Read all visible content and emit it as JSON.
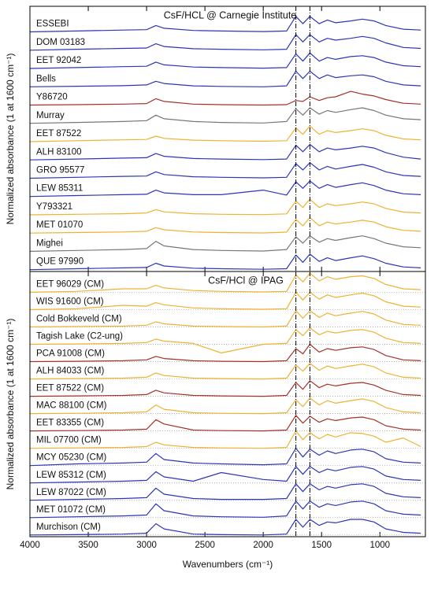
{
  "chart_data": [
    {
      "type": "line",
      "title": "CsF/HCL @ Carnegie Institute",
      "ylabel": "Normalized absorbance (1 at 1600 cm⁻¹)",
      "x": [
        4000,
        3600,
        3200,
        3000,
        2920,
        2850,
        2600,
        2360,
        2000,
        1800,
        1720,
        1660,
        1600,
        1520,
        1450,
        1380,
        1250,
        1150,
        1050,
        950,
        800,
        650
      ],
      "xlim": [
        4000,
        610
      ],
      "xticks": [
        4000,
        3500,
        3000,
        2500,
        2000,
        1500,
        1000
      ],
      "ylim": [
        0,
        14.5
      ],
      "vlines": [
        1720,
        1600
      ],
      "series": [
        {
          "name": "ESSEBI",
          "color": "#2b36b8",
          "values": [
            13.1,
            13.15,
            13.2,
            13.22,
            13.45,
            13.3,
            13.18,
            13.15,
            13.12,
            13.15,
            13.95,
            13.55,
            13.95,
            13.55,
            13.75,
            13.6,
            13.7,
            13.8,
            13.7,
            13.45,
            13.25,
            13.2
          ]
        },
        {
          "name": "DOM 03183",
          "color": "#2b36b8",
          "values": [
            12.1,
            12.15,
            12.2,
            12.22,
            12.45,
            12.3,
            12.18,
            12.15,
            12.12,
            12.15,
            12.95,
            12.55,
            12.95,
            12.55,
            12.75,
            12.65,
            12.75,
            12.85,
            12.75,
            12.5,
            12.25,
            12.2
          ]
        },
        {
          "name": "EET 92042",
          "color": "#2b36b8",
          "values": [
            11.1,
            11.15,
            11.2,
            11.22,
            11.45,
            11.3,
            11.18,
            11.15,
            11.12,
            11.15,
            11.9,
            11.5,
            11.95,
            11.5,
            11.7,
            11.6,
            11.75,
            11.8,
            11.7,
            11.45,
            11.25,
            11.2
          ]
        },
        {
          "name": "Bells",
          "color": "#2b36b8",
          "values": [
            10.1,
            10.13,
            10.16,
            10.2,
            10.4,
            10.28,
            10.15,
            10.12,
            10.1,
            10.15,
            10.95,
            10.55,
            10.95,
            10.55,
            10.75,
            10.6,
            10.7,
            10.75,
            10.65,
            10.4,
            10.2,
            10.15
          ]
        },
        {
          "name": "Y86720",
          "color": "#a5312a",
          "values": [
            9.1,
            9.12,
            9.15,
            9.18,
            9.45,
            9.3,
            9.15,
            9.12,
            9.1,
            9.12,
            9.35,
            9.3,
            9.55,
            9.35,
            9.5,
            9.55,
            9.85,
            9.7,
            9.6,
            9.4,
            9.2,
            9.15
          ]
        },
        {
          "name": "Murray",
          "color": "#777777",
          "values": [
            8.1,
            8.15,
            8.2,
            8.25,
            8.55,
            8.35,
            8.2,
            8.15,
            8.12,
            8.2,
            8.9,
            8.55,
            8.95,
            8.6,
            8.8,
            8.7,
            8.85,
            8.95,
            8.8,
            8.55,
            8.35,
            8.3
          ]
        },
        {
          "name": "EET 87522",
          "color": "#eeb232",
          "values": [
            7.1,
            7.15,
            7.2,
            7.22,
            7.4,
            7.28,
            7.18,
            7.15,
            7.12,
            7.15,
            7.85,
            7.5,
            7.95,
            7.5,
            7.7,
            7.6,
            7.7,
            7.8,
            7.7,
            7.45,
            7.25,
            7.2
          ]
        },
        {
          "name": "ALH 83100",
          "color": "#2b36b8",
          "values": [
            6.1,
            6.15,
            6.2,
            6.22,
            6.45,
            6.3,
            6.18,
            6.15,
            6.12,
            6.15,
            6.9,
            6.55,
            6.95,
            6.55,
            6.75,
            6.65,
            6.75,
            6.85,
            6.75,
            6.5,
            6.25,
            6.15
          ]
        },
        {
          "name": "GRO 95577",
          "color": "#2b36b8",
          "values": [
            5.1,
            5.15,
            5.2,
            5.22,
            5.45,
            5.3,
            5.18,
            5.15,
            5.12,
            5.15,
            5.9,
            5.55,
            5.95,
            5.55,
            5.75,
            5.6,
            5.75,
            5.85,
            5.7,
            5.45,
            5.25,
            5.2
          ]
        },
        {
          "name": "LEW 85311",
          "color": "#2b36b8",
          "values": [
            4.1,
            4.15,
            4.2,
            4.22,
            4.45,
            4.3,
            4.2,
            4.2,
            4.45,
            4.18,
            4.9,
            4.55,
            4.95,
            4.55,
            4.75,
            4.6,
            4.75,
            4.85,
            4.7,
            4.45,
            4.25,
            4.2
          ]
        },
        {
          "name": "Y793321",
          "color": "#eeb232",
          "values": [
            3.1,
            3.13,
            3.16,
            3.2,
            3.38,
            3.26,
            3.16,
            3.13,
            3.11,
            3.15,
            3.85,
            3.5,
            3.95,
            3.5,
            3.7,
            3.6,
            3.7,
            3.8,
            3.7,
            3.45,
            3.25,
            3.2
          ]
        },
        {
          "name": "MET 01070",
          "color": "#eeb232",
          "values": [
            2.1,
            2.13,
            2.16,
            2.2,
            2.4,
            2.28,
            2.16,
            2.13,
            2.11,
            2.15,
            2.85,
            2.5,
            2.95,
            2.5,
            2.7,
            2.6,
            2.7,
            2.8,
            2.7,
            2.45,
            2.25,
            2.2
          ]
        },
        {
          "name": "Mighei",
          "color": "#777777",
          "values": [
            1.1,
            1.15,
            1.2,
            1.25,
            1.65,
            1.4,
            1.2,
            1.15,
            1.12,
            1.2,
            1.9,
            1.55,
            1.95,
            1.6,
            1.8,
            1.7,
            1.85,
            1.95,
            1.8,
            1.55,
            1.35,
            1.3
          ]
        },
        {
          "name": "QUE 97990",
          "color": "#2b36b8",
          "values": [
            0.1,
            0.15,
            0.2,
            0.22,
            0.45,
            0.3,
            0.18,
            0.15,
            0.12,
            0.15,
            0.9,
            0.5,
            0.95,
            0.55,
            0.75,
            0.6,
            0.75,
            0.85,
            0.7,
            0.45,
            0.25,
            0.2
          ]
        }
      ]
    },
    {
      "type": "line",
      "title": "CsF/HCl @ IPAG",
      "ylabel": "Normalized absorbance (1 at 1600 cm⁻¹)",
      "xlabel": "Wavenumbers (cm⁻¹)",
      "x": [
        4000,
        3600,
        3200,
        3000,
        2920,
        2850,
        2600,
        2360,
        2000,
        1800,
        1720,
        1660,
        1600,
        1520,
        1450,
        1380,
        1250,
        1150,
        1050,
        950,
        800,
        650
      ],
      "xlim": [
        4000,
        610
      ],
      "xticks": [
        4000,
        3500,
        3000,
        2500,
        2000,
        1500,
        1000
      ],
      "ylim": [
        0,
        15.3
      ],
      "vlines": [
        1720,
        1600
      ],
      "series": [
        {
          "name": "EET 96029 (CM)",
          "color": "#eeb232",
          "baseline": 14.1,
          "values": [
            14.1,
            14.15,
            14.3,
            14.3,
            14.5,
            14.35,
            14.2,
            14.15,
            14.12,
            14.15,
            15.1,
            14.7,
            15.2,
            14.75,
            15.0,
            14.85,
            15.0,
            15.05,
            14.9,
            14.55,
            14.3,
            14.25
          ]
        },
        {
          "name": "WIS 91600 (CM)",
          "color": "#eeb232",
          "baseline": 13.1,
          "values": [
            13.1,
            13.15,
            13.35,
            13.3,
            13.5,
            13.38,
            13.2,
            13.15,
            13.12,
            13.15,
            14.1,
            13.65,
            14.1,
            13.7,
            13.95,
            13.8,
            13.95,
            14.05,
            13.9,
            13.55,
            13.3,
            13.25
          ]
        },
        {
          "name": "Cold Bokkeveld (CM)",
          "color": "#eeb232",
          "baseline": 12.1,
          "values": [
            12.1,
            12.12,
            12.15,
            12.2,
            12.4,
            12.28,
            12.15,
            12.12,
            12.1,
            12.15,
            13.05,
            12.6,
            13.05,
            12.65,
            12.9,
            12.75,
            12.9,
            13.0,
            12.85,
            12.5,
            12.25,
            12.2
          ]
        },
        {
          "name": "Tagish Lake (C2-ung)",
          "color": "#eeb232",
          "baseline": 11.1,
          "values": [
            11.1,
            11.12,
            11.15,
            11.2,
            11.4,
            11.28,
            11.15,
            10.6,
            11.1,
            11.15,
            11.95,
            11.6,
            12.05,
            11.65,
            11.85,
            11.75,
            11.9,
            11.95,
            11.8,
            11.45,
            11.2,
            11.15
          ]
        },
        {
          "name": "PCA 91008 (CM)",
          "color": "#a5312a",
          "baseline": 10.1,
          "values": [
            10.1,
            10.12,
            10.15,
            10.2,
            10.4,
            10.28,
            10.15,
            10.12,
            10.1,
            10.15,
            10.85,
            10.55,
            11.1,
            10.65,
            10.85,
            10.75,
            10.9,
            10.95,
            10.8,
            10.45,
            10.2,
            10.15
          ]
        },
        {
          "name": "ALH 84033 (CM)",
          "color": "#eeb232",
          "baseline": 9.1,
          "values": [
            9.1,
            9.12,
            9.15,
            9.2,
            9.45,
            9.3,
            9.15,
            9.12,
            9.1,
            9.15,
            9.9,
            9.55,
            10.0,
            9.6,
            9.85,
            9.7,
            9.85,
            9.95,
            9.8,
            9.45,
            9.2,
            9.15
          ]
        },
        {
          "name": "EET 87522 (CM)",
          "color": "#a5312a",
          "baseline": 8.1,
          "values": [
            8.1,
            8.12,
            8.15,
            8.2,
            8.45,
            8.3,
            8.15,
            8.12,
            8.1,
            8.15,
            8.9,
            8.5,
            9.0,
            8.6,
            8.8,
            8.7,
            8.85,
            8.9,
            8.75,
            8.45,
            8.2,
            8.15
          ]
        },
        {
          "name": "MAC 88100 (CM)",
          "color": "#eeb232",
          "baseline": 7.1,
          "values": [
            7.1,
            7.12,
            7.15,
            7.2,
            7.6,
            7.35,
            7.15,
            7.12,
            7.1,
            7.15,
            7.9,
            7.5,
            8.0,
            7.6,
            7.85,
            7.7,
            7.85,
            7.95,
            7.8,
            7.45,
            7.2,
            7.15
          ]
        },
        {
          "name": "EET 83355 (CM)",
          "color": "#a5312a",
          "baseline": 6.1,
          "values": [
            6.1,
            6.12,
            6.15,
            6.2,
            6.75,
            6.5,
            6.15,
            6.12,
            6.1,
            6.15,
            7.0,
            6.55,
            6.95,
            6.6,
            6.8,
            6.7,
            6.85,
            6.9,
            6.75,
            6.4,
            6.2,
            6.15
          ]
        },
        {
          "name": "MIL 07700 (CM)",
          "color": "#eeb232",
          "baseline": 5.1,
          "values": [
            5.1,
            5.12,
            5.15,
            5.2,
            5.45,
            5.3,
            5.15,
            5.12,
            5.1,
            5.15,
            6.1,
            5.6,
            6.0,
            5.65,
            5.9,
            5.75,
            6.0,
            5.95,
            5.8,
            5.45,
            5.7,
            5.2
          ]
        },
        {
          "name": "MCY 05230 (CM)",
          "color": "#2b36b8",
          "baseline": 4.1,
          "values": [
            4.1,
            4.2,
            4.25,
            4.3,
            4.8,
            4.45,
            4.25,
            4.2,
            4.15,
            4.2,
            5.1,
            4.6,
            5.05,
            4.7,
            4.95,
            4.8,
            5.0,
            5.05,
            4.9,
            4.5,
            4.3,
            4.25
          ]
        },
        {
          "name": "LEW 85312 (CM)",
          "color": "#2b36b8",
          "baseline": 3.1,
          "values": [
            3.1,
            3.15,
            3.2,
            3.25,
            3.75,
            3.45,
            3.2,
            3.7,
            3.3,
            3.2,
            4.05,
            3.6,
            4.05,
            3.7,
            3.9,
            3.8,
            4.0,
            4.05,
            3.9,
            3.5,
            3.3,
            3.25
          ]
        },
        {
          "name": "LEW 87022 (CM)",
          "color": "#2b36b8",
          "baseline": 2.1,
          "values": [
            2.1,
            2.15,
            2.2,
            2.25,
            2.8,
            2.45,
            2.2,
            2.15,
            2.15,
            2.2,
            3.05,
            2.6,
            3.05,
            2.7,
            2.9,
            2.8,
            3.0,
            3.05,
            2.9,
            2.5,
            2.3,
            2.25
          ]
        },
        {
          "name": "MET 01072 (CM)",
          "color": "#2b36b8",
          "baseline": 1.1,
          "values": [
            1.1,
            1.15,
            1.2,
            1.25,
            1.9,
            1.5,
            1.2,
            1.15,
            1.12,
            1.2,
            2.05,
            1.6,
            2.05,
            1.7,
            1.9,
            1.8,
            2.0,
            2.05,
            1.9,
            1.5,
            1.3,
            1.25
          ]
        },
        {
          "name": "Murchison (CM)",
          "color": "#2b36b8",
          "baseline": 0.1,
          "values": [
            0.1,
            0.12,
            0.15,
            0.2,
            0.75,
            0.45,
            0.15,
            0.12,
            0.1,
            0.15,
            1.0,
            0.55,
            1.0,
            0.65,
            0.85,
            0.8,
            1.0,
            1.0,
            0.85,
            0.45,
            0.25,
            0.2
          ]
        }
      ]
    }
  ]
}
